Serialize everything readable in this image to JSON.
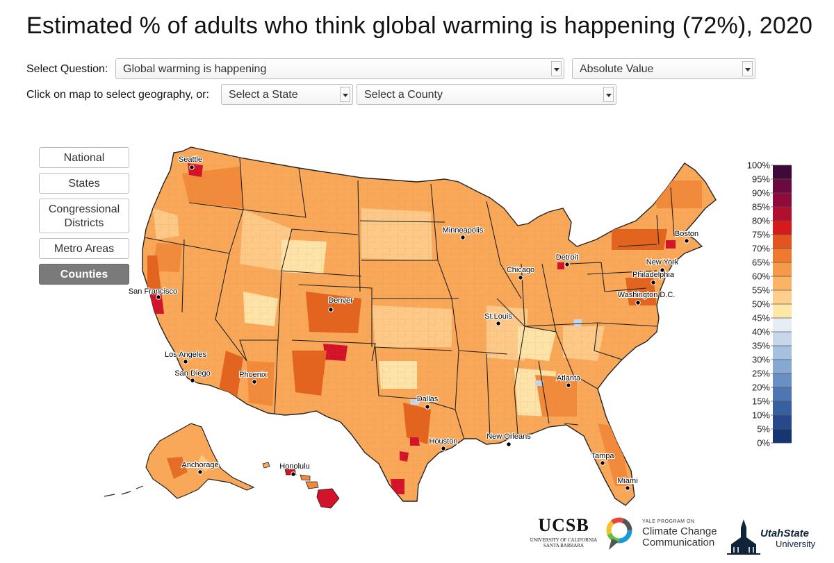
{
  "title": "Estimated % of adults who think global warming is happening (72%), 2020",
  "controls": {
    "question_label": "Select Question:",
    "question_value": "Global warming is happening",
    "measure_value": "Absolute Value",
    "geo_label": "Click on map to select geography, or:",
    "state_value": "Select a State",
    "county_value": "Select a County"
  },
  "geo_buttons": [
    {
      "label": "National",
      "active": false
    },
    {
      "label": "States",
      "active": false
    },
    {
      "label": "Congressional Districts",
      "active": false
    },
    {
      "label": "Metro Areas",
      "active": false
    },
    {
      "label": "Counties",
      "active": true
    }
  ],
  "legend": {
    "labels": [
      "100%",
      "95%",
      "90%",
      "85%",
      "80%",
      "75%",
      "70%",
      "65%",
      "60%",
      "55%",
      "50%",
      "45%",
      "40%",
      "35%",
      "30%",
      "25%",
      "20%",
      "15%",
      "10%",
      "5%",
      "0%"
    ],
    "colors": [
      "#3d0a3a",
      "#6b0a3e",
      "#8e0b3b",
      "#b0102e",
      "#d7191c",
      "#e4541f",
      "#ef7a2e",
      "#f69a4a",
      "#fbb463",
      "#fdcf8a",
      "#fde8a8",
      "#e7edf5",
      "#c6d7ec",
      "#a6c0e0",
      "#86a8d3",
      "#6990c4",
      "#4e76b2",
      "#37609f",
      "#25498a",
      "#163573"
    ]
  },
  "cities": [
    {
      "name": "Seattle"
    },
    {
      "name": "San Francisco"
    },
    {
      "name": "Los Angeles"
    },
    {
      "name": "San Diego"
    },
    {
      "name": "Phoenix"
    },
    {
      "name": "Denver"
    },
    {
      "name": "Minneapolis"
    },
    {
      "name": "Chicago"
    },
    {
      "name": "Detroit"
    },
    {
      "name": "St.Louis"
    },
    {
      "name": "Dallas"
    },
    {
      "name": "Houston"
    },
    {
      "name": "New Orleans"
    },
    {
      "name": "Atlanta"
    },
    {
      "name": "Tampa"
    },
    {
      "name": "Miami"
    },
    {
      "name": "Washington D.C."
    },
    {
      "name": "Philadelphia"
    },
    {
      "name": "New York"
    },
    {
      "name": "Boston"
    },
    {
      "name": "Anchorage"
    },
    {
      "name": "Honolulu"
    }
  ],
  "logos": {
    "ucsb": {
      "name": "UCSB",
      "sub1": "UNIVERSITY OF CALIFORNIA",
      "sub2": "SANTA BARBARA"
    },
    "yale": {
      "small": "YALE PROGRAM ON",
      "line1": "Climate Change",
      "line2": "Communication"
    },
    "usu": {
      "line1": "UtahState",
      "line2": "University"
    }
  },
  "map_colors": {
    "base": "#f8a858",
    "light": "#fcc988",
    "pale": "#fde3a7",
    "mid": "#f28a3c",
    "dark": "#e2641f",
    "hot": "#d4122a",
    "blue": "#c6d7ec",
    "border": "#222222"
  }
}
